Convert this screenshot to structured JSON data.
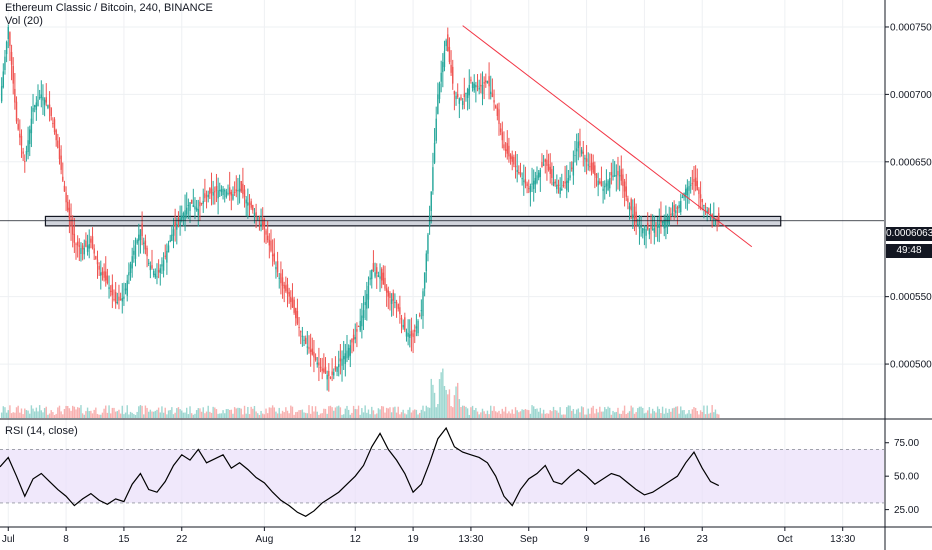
{
  "header": {
    "symbol_line": "Ethereum Classic / Bitcoin, 240, BINANCE",
    "volume_label": "Vol (20)",
    "rsi_label": "RSI (14, close)"
  },
  "price_tag": {
    "value": "0.0006063",
    "countdown": "49:48"
  },
  "chart_data": [
    {
      "type": "candlestick",
      "title": "Ethereum Classic / Bitcoin, 240, BINANCE",
      "y_ticks": [
        "0.0007500",
        "0.0007000",
        "0.0006500",
        "0.0005500",
        "0.0005000"
      ],
      "y_tick_values": [
        0.00075,
        0.0007,
        0.00065,
        0.00055,
        0.0005
      ],
      "ylim": [
        0.00046,
        0.00077
      ],
      "x_ticks": [
        "Jul",
        "8",
        "15",
        "22",
        "Aug",
        "12",
        "19",
        "13:30",
        "Sep",
        "9",
        "16",
        "23",
        "Oct",
        "13:30"
      ],
      "x_tick_positions": [
        1,
        8,
        15,
        22,
        32,
        43,
        50,
        57,
        64,
        71,
        78,
        85,
        95,
        102
      ],
      "xlim": [
        0,
        107
      ],
      "price_path": [
        [
          0,
          0.000695
        ],
        [
          1,
          0.00075
        ],
        [
          2,
          0.00068
        ],
        [
          3,
          0.00065
        ],
        [
          4,
          0.00069
        ],
        [
          5,
          0.0007
        ],
        [
          6,
          0.00069
        ],
        [
          7,
          0.00066
        ],
        [
          8,
          0.00062
        ],
        [
          9,
          0.00059
        ],
        [
          10,
          0.000585
        ],
        [
          11,
          0.00059
        ],
        [
          12,
          0.00057
        ],
        [
          13,
          0.00056
        ],
        [
          14,
          0.000545
        ],
        [
          15,
          0.00055
        ],
        [
          16,
          0.00058
        ],
        [
          17,
          0.0006
        ],
        [
          18,
          0.000575
        ],
        [
          19,
          0.000565
        ],
        [
          20,
          0.00058
        ],
        [
          21,
          0.0006
        ],
        [
          22,
          0.00061
        ],
        [
          23,
          0.00062
        ],
        [
          24,
          0.000615
        ],
        [
          25,
          0.000625
        ],
        [
          26,
          0.000628
        ],
        [
          27,
          0.00063
        ],
        [
          28,
          0.000625
        ],
        [
          29,
          0.00063
        ],
        [
          30,
          0.00062
        ],
        [
          31,
          0.00061
        ],
        [
          32,
          0.0006
        ],
        [
          33,
          0.00058
        ],
        [
          34,
          0.00056
        ],
        [
          35,
          0.00055
        ],
        [
          36,
          0.00053
        ],
        [
          37,
          0.000515
        ],
        [
          38,
          0.000505
        ],
        [
          39,
          0.000495
        ],
        [
          40,
          0.00049
        ],
        [
          41,
          0.0005
        ],
        [
          42,
          0.00051
        ],
        [
          43,
          0.00052
        ],
        [
          44,
          0.00054
        ],
        [
          45,
          0.00057
        ],
        [
          46,
          0.000565
        ],
        [
          47,
          0.00055
        ],
        [
          48,
          0.000545
        ],
        [
          49,
          0.000525
        ],
        [
          50,
          0.00052
        ],
        [
          51,
          0.00054
        ],
        [
          52,
          0.00061
        ],
        [
          53,
          0.0007
        ],
        [
          54,
          0.00074
        ],
        [
          55,
          0.0007
        ],
        [
          56,
          0.000695
        ],
        [
          57,
          0.00071
        ],
        [
          58,
          0.000705
        ],
        [
          59,
          0.00071
        ],
        [
          60,
          0.00069
        ],
        [
          61,
          0.00066
        ],
        [
          62,
          0.00065
        ],
        [
          63,
          0.00064
        ],
        [
          64,
          0.00063
        ],
        [
          65,
          0.00064
        ],
        [
          66,
          0.00065
        ],
        [
          67,
          0.000635
        ],
        [
          68,
          0.00063
        ],
        [
          69,
          0.00064
        ],
        [
          70,
          0.000665
        ],
        [
          71,
          0.00065
        ],
        [
          72,
          0.00064
        ],
        [
          73,
          0.00063
        ],
        [
          74,
          0.00064
        ],
        [
          75,
          0.00064
        ],
        [
          76,
          0.00062
        ],
        [
          77,
          0.000605
        ],
        [
          78,
          0.0006
        ],
        [
          79,
          0.0006
        ],
        [
          80,
          0.000605
        ],
        [
          81,
          0.00061
        ],
        [
          82,
          0.000615
        ],
        [
          83,
          0.00063
        ],
        [
          84,
          0.000635
        ],
        [
          85,
          0.00062
        ],
        [
          86,
          0.00061
        ],
        [
          87,
          0.0006063
        ]
      ],
      "support_zone": [
        0.0006025,
        0.0006095
      ],
      "support_zone_x": [
        5.5,
        94.5
      ],
      "trendline": [
        [
          56,
          0.000751
        ],
        [
          91,
          0.000587
        ]
      ],
      "last_price": 0.0006063
    },
    {
      "type": "bar",
      "title": "Vol (20)",
      "colors": {
        "up": "#26a69a",
        "down": "#ef5350"
      }
    },
    {
      "type": "line",
      "title": "RSI (14, close)",
      "y_ticks": [
        "75.00",
        "50.00",
        "25.00"
      ],
      "y_tick_values": [
        75,
        50,
        25
      ],
      "ylim": [
        12,
        92
      ],
      "band": [
        30,
        70
      ],
      "xlim": [
        0,
        107
      ],
      "values": [
        [
          0,
          57
        ],
        [
          1,
          64
        ],
        [
          2,
          50
        ],
        [
          3,
          35
        ],
        [
          4,
          48
        ],
        [
          5,
          52
        ],
        [
          6,
          46
        ],
        [
          7,
          40
        ],
        [
          8,
          35
        ],
        [
          9,
          28
        ],
        [
          10,
          33
        ],
        [
          11,
          37
        ],
        [
          12,
          32
        ],
        [
          13,
          29
        ],
        [
          14,
          33
        ],
        [
          15,
          31
        ],
        [
          16,
          44
        ],
        [
          17,
          52
        ],
        [
          18,
          40
        ],
        [
          19,
          38
        ],
        [
          20,
          46
        ],
        [
          21,
          58
        ],
        [
          22,
          66
        ],
        [
          23,
          62
        ],
        [
          24,
          70
        ],
        [
          25,
          60
        ],
        [
          26,
          63
        ],
        [
          27,
          66
        ],
        [
          28,
          56
        ],
        [
          29,
          60
        ],
        [
          30,
          55
        ],
        [
          31,
          49
        ],
        [
          32,
          45
        ],
        [
          33,
          38
        ],
        [
          34,
          32
        ],
        [
          35,
          28
        ],
        [
          36,
          23
        ],
        [
          37,
          20
        ],
        [
          38,
          24
        ],
        [
          39,
          30
        ],
        [
          40,
          34
        ],
        [
          41,
          38
        ],
        [
          42,
          44
        ],
        [
          43,
          50
        ],
        [
          44,
          58
        ],
        [
          45,
          72
        ],
        [
          46,
          82
        ],
        [
          47,
          70
        ],
        [
          48,
          62
        ],
        [
          49,
          52
        ],
        [
          50,
          38
        ],
        [
          51,
          44
        ],
        [
          52,
          60
        ],
        [
          53,
          78
        ],
        [
          54,
          86
        ],
        [
          55,
          72
        ],
        [
          56,
          68
        ],
        [
          57,
          66
        ],
        [
          58,
          64
        ],
        [
          59,
          60
        ],
        [
          60,
          50
        ],
        [
          61,
          35
        ],
        [
          62,
          28
        ],
        [
          63,
          40
        ],
        [
          64,
          48
        ],
        [
          65,
          52
        ],
        [
          66,
          58
        ],
        [
          67,
          46
        ],
        [
          68,
          44
        ],
        [
          69,
          50
        ],
        [
          70,
          55
        ],
        [
          71,
          50
        ],
        [
          72,
          44
        ],
        [
          73,
          48
        ],
        [
          74,
          52
        ],
        [
          75,
          50
        ],
        [
          76,
          45
        ],
        [
          77,
          40
        ],
        [
          78,
          36
        ],
        [
          79,
          38
        ],
        [
          80,
          42
        ],
        [
          81,
          46
        ],
        [
          82,
          50
        ],
        [
          83,
          60
        ],
        [
          84,
          68
        ],
        [
          85,
          56
        ],
        [
          86,
          46
        ],
        [
          87,
          43
        ]
      ]
    }
  ]
}
